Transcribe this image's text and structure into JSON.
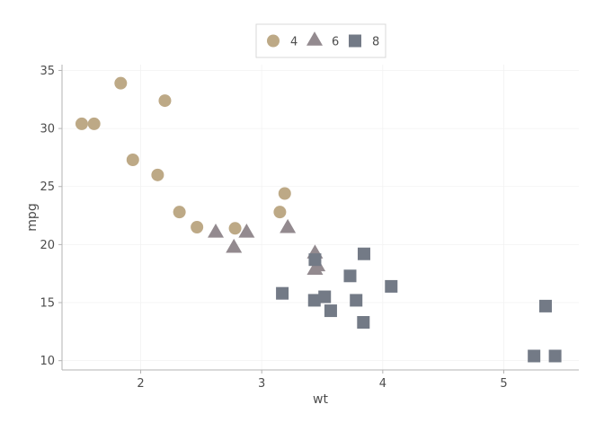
{
  "chart_data": {
    "type": "scatter",
    "xlabel": "wt",
    "ylabel": "mpg",
    "xlim": [
      1.35,
      5.62
    ],
    "ylim": [
      9.2,
      35.5
    ],
    "xticks": [
      2,
      3,
      4,
      5
    ],
    "yticks": [
      10,
      15,
      20,
      25,
      30,
      35
    ],
    "grid": true,
    "legend": {
      "position": "top-center",
      "entries": [
        {
          "label": "4",
          "shape": "circle",
          "color": "#bda986"
        },
        {
          "label": "6",
          "shape": "triangle",
          "color": "#938a8f"
        },
        {
          "label": "8",
          "shape": "square",
          "color": "#737a86"
        }
      ]
    },
    "series": [
      {
        "name": "4",
        "shape": "circle",
        "color": "#bda986",
        "points": [
          [
            1.513,
            30.4
          ],
          [
            1.615,
            30.4
          ],
          [
            1.835,
            33.9
          ],
          [
            2.2,
            32.4
          ],
          [
            1.935,
            27.3
          ],
          [
            2.14,
            26.0
          ],
          [
            2.32,
            22.8
          ],
          [
            2.465,
            21.5
          ],
          [
            2.78,
            21.4
          ],
          [
            3.15,
            22.8
          ],
          [
            3.19,
            24.4
          ]
        ]
      },
      {
        "name": "6",
        "shape": "triangle",
        "color": "#938a8f",
        "points": [
          [
            2.62,
            21.0
          ],
          [
            2.875,
            21.0
          ],
          [
            2.77,
            19.7
          ],
          [
            3.215,
            21.4
          ],
          [
            3.44,
            19.2
          ],
          [
            3.46,
            18.1
          ],
          [
            3.44,
            17.8
          ]
        ]
      },
      {
        "name": "8",
        "shape": "square",
        "color": "#737a86",
        "points": [
          [
            3.17,
            15.8
          ],
          [
            3.44,
            18.7
          ],
          [
            3.435,
            15.2
          ],
          [
            3.52,
            15.5
          ],
          [
            3.57,
            14.3
          ],
          [
            3.73,
            17.3
          ],
          [
            3.78,
            15.2
          ],
          [
            3.84,
            13.3
          ],
          [
            3.845,
            19.2
          ],
          [
            4.07,
            16.4
          ],
          [
            5.25,
            10.4
          ],
          [
            5.345,
            14.7
          ],
          [
            5.424,
            10.4
          ]
        ]
      }
    ]
  }
}
